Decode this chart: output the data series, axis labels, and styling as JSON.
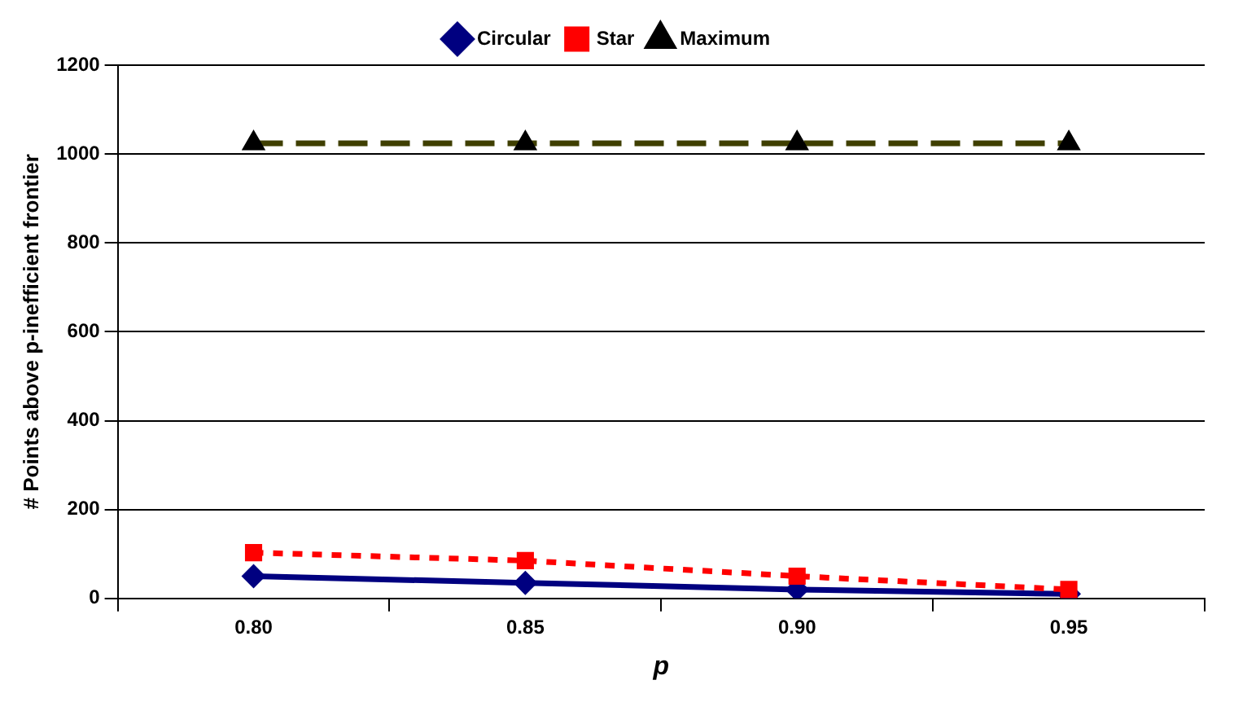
{
  "chart_data": {
    "type": "line",
    "xlabel": "p",
    "ylabel": "# Points above p-inefficient frontier",
    "categories": [
      "0.80",
      "0.85",
      "0.90",
      "0.95"
    ],
    "series": [
      {
        "name": "Circular",
        "color": "#000080",
        "values": [
          50,
          35,
          20,
          10
        ],
        "marker": "diamond",
        "line_style": "solid"
      },
      {
        "name": "Star",
        "color": "#ff0000",
        "values": [
          103,
          85,
          50,
          20
        ],
        "marker": "square",
        "line_style": "dotted"
      },
      {
        "name": "Maximum",
        "color": "#3f3f00",
        "values": [
          1024,
          1024,
          1024,
          1024
        ],
        "marker": "triangle",
        "line_style": "dashed"
      }
    ],
    "ylim": [
      0,
      1200
    ],
    "yticks": [
      0,
      200,
      400,
      600,
      800,
      1000,
      1200
    ],
    "grid": "y",
    "legend": "top"
  }
}
